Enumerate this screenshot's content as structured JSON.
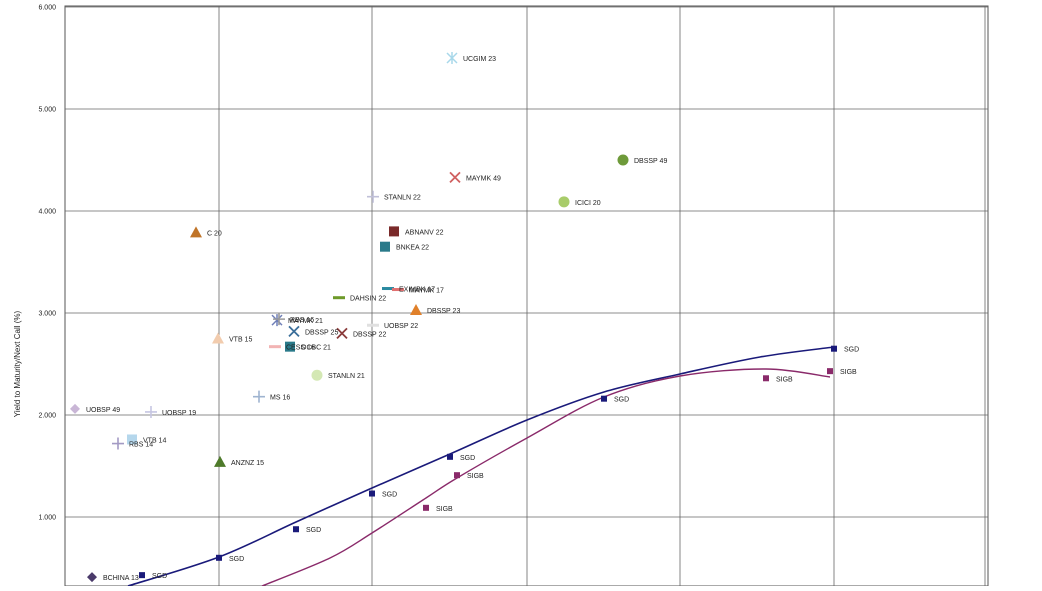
{
  "chart_data": {
    "type": "scatter",
    "title": "",
    "xlabel": "",
    "ylabel": "Yield to Maturity/Next Call (%)",
    "ylim": [
      0.35,
      6.0
    ],
    "xlim": [
      0,
      1000
    ],
    "y_ticks": [
      "1.000",
      "2.000",
      "3.000",
      "4.000",
      "5.000",
      "6.000"
    ],
    "grid": true,
    "series": [
      {
        "name": "UOBSP 49",
        "color": "#c9b6d6",
        "marker": "diamond",
        "x": 75,
        "y": 2.06
      },
      {
        "name": "UOBSP 19",
        "color": "#c6c6e2",
        "marker": "plus",
        "x": 151,
        "y": 2.03
      },
      {
        "name": "VTB 14",
        "color": "#b5d7ec",
        "marker": "square",
        "x": 132,
        "y": 1.76
      },
      {
        "name": "RBS 14",
        "color": "#a39ac4",
        "marker": "plus",
        "x": 118,
        "y": 1.72
      },
      {
        "name": "BCHINA 13",
        "color": "#4a3a6a",
        "marker": "diamond",
        "x": 92,
        "y": 0.41
      },
      {
        "name": "ANZNZ 15",
        "color": "#4e7a2a",
        "marker": "triangle",
        "x": 220,
        "y": 1.54
      },
      {
        "name": "VTB 15",
        "color": "#f2ccae",
        "marker": "triangle",
        "x": 218,
        "y": 2.75
      },
      {
        "name": "C 20",
        "color": "#c07428",
        "marker": "triangle",
        "x": 196,
        "y": 3.79
      },
      {
        "name": "MS 16",
        "color": "#9fb4d0",
        "marker": "plus",
        "x": 259,
        "y": 2.18
      },
      {
        "name": "STANLN 21",
        "color": "#d4e8b4",
        "marker": "circle",
        "x": 317,
        "y": 2.39
      },
      {
        "name": "MAYMK 21",
        "color": "#6f7fb8",
        "marker": "asterisk",
        "x": 277,
        "y": 2.93
      },
      {
        "name": "RBS 16",
        "color": "#9a9a9a",
        "marker": "plus",
        "x": 279,
        "y": 2.94
      },
      {
        "name": "DBSSP 25",
        "color": "#3a6e9a",
        "marker": "cross",
        "x": 294,
        "y": 2.82
      },
      {
        "name": "DBSSP 22",
        "color": "#8a3a3a",
        "marker": "cross",
        "x": 342,
        "y": 2.8
      },
      {
        "name": "CESS 16",
        "color": "#f2b4b4",
        "marker": "dash",
        "x": 275,
        "y": 2.67
      },
      {
        "name": "OCBC 21",
        "color": "#2a7a8a",
        "marker": "square",
        "x": 290,
        "y": 2.67
      },
      {
        "name": "DAHSIN 22",
        "color": "#6e9a2a",
        "marker": "dash",
        "x": 339,
        "y": 3.15
      },
      {
        "name": "UOBSP 22",
        "color": "#e0e0e0",
        "marker": "dash",
        "x": 373,
        "y": 2.88
      },
      {
        "name": "STANLN 22",
        "color": "#c0c0d8",
        "marker": "plus",
        "x": 373,
        "y": 4.14
      },
      {
        "name": "ABNANV 22",
        "color": "#7a2a2a",
        "marker": "square",
        "x": 394,
        "y": 3.8
      },
      {
        "name": "BNKEA 22",
        "color": "#2a7a8a",
        "marker": "square",
        "x": 385,
        "y": 3.65
      },
      {
        "name": "EXIMBK 17",
        "color": "#2a8aa0",
        "marker": "dash",
        "x": 388,
        "y": 3.24
      },
      {
        "name": "MAYMK 17",
        "color": "#e07070",
        "marker": "dash",
        "x": 398,
        "y": 3.23
      },
      {
        "name": "DBSSP 23",
        "color": "#e0802a",
        "marker": "triangle",
        "x": 416,
        "y": 3.03
      },
      {
        "name": "UCGIM 23",
        "color": "#a8d8ea",
        "marker": "asterisk",
        "x": 452,
        "y": 5.5
      },
      {
        "name": "MAYMK 49",
        "color": "#d06060",
        "marker": "cross",
        "x": 455,
        "y": 4.33
      },
      {
        "name": "ICICI 20",
        "color": "#a8cc6a",
        "marker": "circle",
        "x": 564,
        "y": 4.09
      },
      {
        "name": "DBSSP 49",
        "color": "#6e9a3a",
        "marker": "circle",
        "x": 623,
        "y": 4.5
      }
    ],
    "curves": [
      {
        "name": "SGD",
        "color": "#1a1a7a",
        "points": [
          {
            "x": 142,
            "y": 0.43,
            "label": "SGD"
          },
          {
            "x": 219,
            "y": 0.6,
            "label": "SGD"
          },
          {
            "x": 296,
            "y": 0.88,
            "label": "SGD"
          },
          {
            "x": 372,
            "y": 1.23,
            "label": "SGD"
          },
          {
            "x": 450,
            "y": 1.59,
            "label": "SGD"
          },
          {
            "x": 604,
            "y": 2.16,
            "label": "SGD"
          },
          {
            "x": 834,
            "y": 2.65,
            "label": "SGD"
          }
        ]
      },
      {
        "name": "SIGB",
        "color": "#8a2a6a",
        "points": [
          {
            "x": 426,
            "y": 1.09,
            "label": "SIGB"
          },
          {
            "x": 457,
            "y": 1.41,
            "label": "SIGB"
          },
          {
            "x": 766,
            "y": 2.36,
            "label": "SIGB"
          },
          {
            "x": 830,
            "y": 2.43,
            "label": "SIGB"
          }
        ]
      }
    ]
  }
}
